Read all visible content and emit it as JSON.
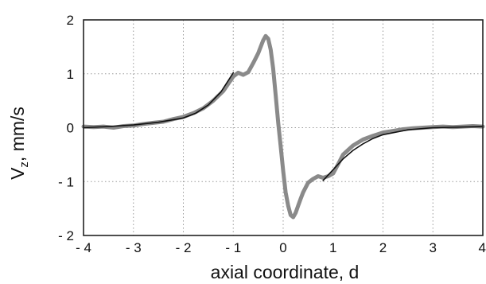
{
  "chart_data": {
    "type": "line",
    "xlabel": "axial coordinate, d",
    "ylabel": {
      "main": "V",
      "sub": "z",
      "rest": ",  mm/s"
    },
    "xlim": [
      -4,
      4
    ],
    "ylim": [
      -2,
      2
    ],
    "grid": true,
    "x_ticks": [
      -4,
      -3,
      -2,
      -1,
      0,
      1,
      2,
      3,
      4
    ],
    "y_ticks": [
      2,
      1,
      0,
      -1,
      -2
    ],
    "x_tick_labels": [
      "- 4",
      "- 3",
      "- 2",
      "- 1",
      "0",
      "1",
      "2",
      "3",
      "4"
    ],
    "y_tick_labels": [
      "2",
      "1",
      "0",
      "- 1",
      "- 2"
    ],
    "colors": {
      "measured": "#8a8a8a",
      "fit": "#111111",
      "grid": "#9a9a9a",
      "frame": "#222222"
    },
    "series": [
      {
        "style": "thick-gray",
        "x": [
          -4.0,
          -3.8,
          -3.6,
          -3.4,
          -3.2,
          -3.0,
          -2.8,
          -2.6,
          -2.4,
          -2.2,
          -2.0,
          -1.8,
          -1.6,
          -1.4,
          -1.2,
          -1.0,
          -0.9,
          -0.8,
          -0.7,
          -0.6,
          -0.5,
          -0.4,
          -0.35,
          -0.3,
          -0.25,
          -0.2,
          -0.15,
          -0.1,
          -0.05,
          0.0,
          0.05,
          0.1,
          0.15,
          0.2,
          0.25,
          0.3,
          0.35,
          0.4,
          0.5,
          0.6,
          0.7,
          0.8,
          0.9,
          1.0,
          1.1,
          1.2,
          1.4,
          1.6,
          1.8,
          2.0,
          2.2,
          2.4,
          2.6,
          2.8,
          3.0,
          3.2,
          3.4,
          3.6,
          3.8,
          4.0
        ],
        "y": [
          0.02,
          0.01,
          0.02,
          0.0,
          0.03,
          0.04,
          0.07,
          0.09,
          0.11,
          0.16,
          0.2,
          0.27,
          0.36,
          0.5,
          0.68,
          0.95,
          1.02,
          0.98,
          1.03,
          1.2,
          1.38,
          1.62,
          1.7,
          1.65,
          1.45,
          1.1,
          0.6,
          0.1,
          -0.35,
          -0.8,
          -1.2,
          -1.45,
          -1.62,
          -1.66,
          -1.58,
          -1.45,
          -1.32,
          -1.2,
          -1.02,
          -0.95,
          -0.9,
          -0.93,
          -0.9,
          -0.85,
          -0.68,
          -0.5,
          -0.33,
          -0.22,
          -0.15,
          -0.09,
          -0.06,
          -0.03,
          -0.01,
          0.0,
          0.01,
          0.02,
          0.01,
          0.02,
          0.03,
          0.02
        ]
      },
      {
        "style": "thin-black",
        "x": [
          -4.0,
          -3.5,
          -3.0,
          -2.5,
          -2.0,
          -1.75,
          -1.5,
          -1.25,
          -1.0
        ],
        "y": [
          0.0,
          0.02,
          0.05,
          0.1,
          0.18,
          0.27,
          0.42,
          0.66,
          1.02
        ]
      },
      {
        "style": "thin-black",
        "x": [
          0.8,
          1.0,
          1.2,
          1.4,
          1.6,
          1.8,
          2.0,
          2.5,
          3.0,
          3.5,
          4.0
        ],
        "y": [
          -0.98,
          -0.78,
          -0.58,
          -0.42,
          -0.3,
          -0.2,
          -0.13,
          -0.04,
          0.0,
          0.01,
          0.02
        ]
      }
    ]
  }
}
